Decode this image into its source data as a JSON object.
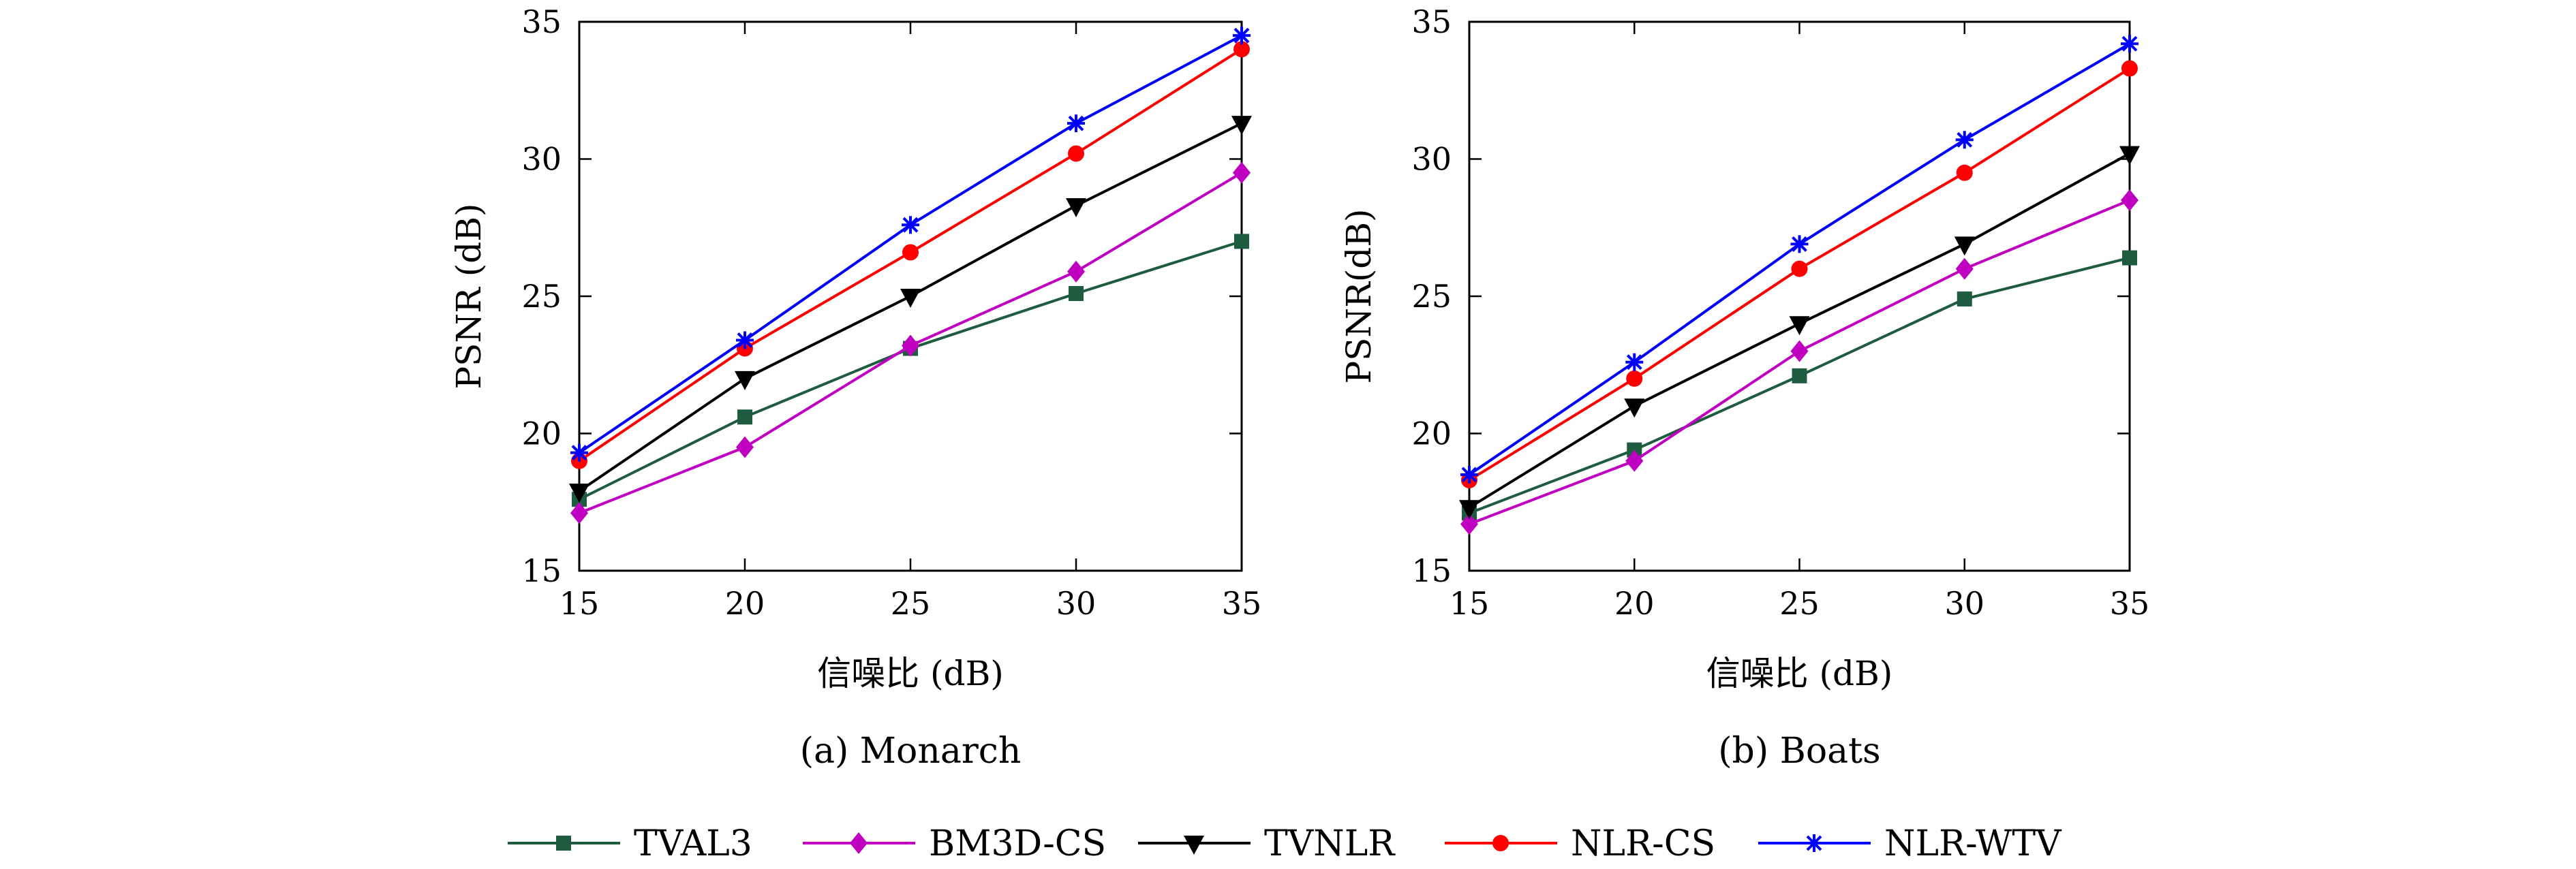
{
  "chart_data": [
    {
      "type": "line",
      "caption": "(a) Monarch",
      "xlabel": "信噪比 (dB)",
      "ylabel": "PSNR (dB)",
      "x": [
        15,
        20,
        25,
        30,
        35
      ],
      "xlim": [
        15,
        35
      ],
      "ylim": [
        15,
        35
      ],
      "xticks": [
        "15",
        "20",
        "25",
        "30",
        "35"
      ],
      "yticks": [
        "15",
        "20",
        "25",
        "30",
        "35"
      ],
      "grid": false,
      "series": [
        {
          "name": "TVAL3",
          "color": "#1f5c3f",
          "marker": "square",
          "values": [
            17.6,
            20.6,
            23.1,
            25.1,
            27.0
          ]
        },
        {
          "name": "BM3D-CS",
          "color": "#c000c0",
          "marker": "diamond",
          "values": [
            17.1,
            19.5,
            23.2,
            25.9,
            29.5
          ]
        },
        {
          "name": "TVNLR",
          "color": "#000000",
          "marker": "triangle-down",
          "values": [
            17.9,
            22.0,
            25.0,
            28.3,
            31.3
          ]
        },
        {
          "name": "NLR-CS",
          "color": "#ff0000",
          "marker": "circle",
          "values": [
            19.0,
            23.1,
            26.6,
            30.2,
            34.0
          ]
        },
        {
          "name": "NLR-WTV",
          "color": "#0000ff",
          "marker": "asterisk",
          "values": [
            19.3,
            23.4,
            27.6,
            31.3,
            34.5
          ]
        }
      ]
    },
    {
      "type": "line",
      "caption": "(b) Boats",
      "xlabel": "信噪比 (dB)",
      "ylabel": "PSNR(dB)",
      "x": [
        15,
        20,
        25,
        30,
        35
      ],
      "xlim": [
        15,
        35
      ],
      "ylim": [
        15,
        35
      ],
      "xticks": [
        "15",
        "20",
        "25",
        "30",
        "35"
      ],
      "yticks": [
        "15",
        "20",
        "25",
        "30",
        "35"
      ],
      "grid": false,
      "series": [
        {
          "name": "TVAL3",
          "color": "#1f5c3f",
          "marker": "square",
          "values": [
            17.1,
            19.4,
            22.1,
            24.9,
            26.4
          ]
        },
        {
          "name": "BM3D-CS",
          "color": "#c000c0",
          "marker": "diamond",
          "values": [
            16.7,
            19.0,
            23.0,
            26.0,
            28.5
          ]
        },
        {
          "name": "TVNLR",
          "color": "#000000",
          "marker": "triangle-down",
          "values": [
            17.3,
            21.0,
            24.0,
            26.9,
            30.2
          ]
        },
        {
          "name": "NLR-CS",
          "color": "#ff0000",
          "marker": "circle",
          "values": [
            18.3,
            22.0,
            26.0,
            29.5,
            33.3
          ]
        },
        {
          "name": "NLR-WTV",
          "color": "#0000ff",
          "marker": "asterisk",
          "values": [
            18.5,
            22.6,
            26.9,
            30.7,
            34.2
          ]
        }
      ]
    }
  ],
  "legend": {
    "position": "bottom",
    "entries": [
      "TVAL3",
      "BM3D-CS",
      "TVNLR",
      "NLR-CS",
      "NLR-WTV"
    ]
  }
}
